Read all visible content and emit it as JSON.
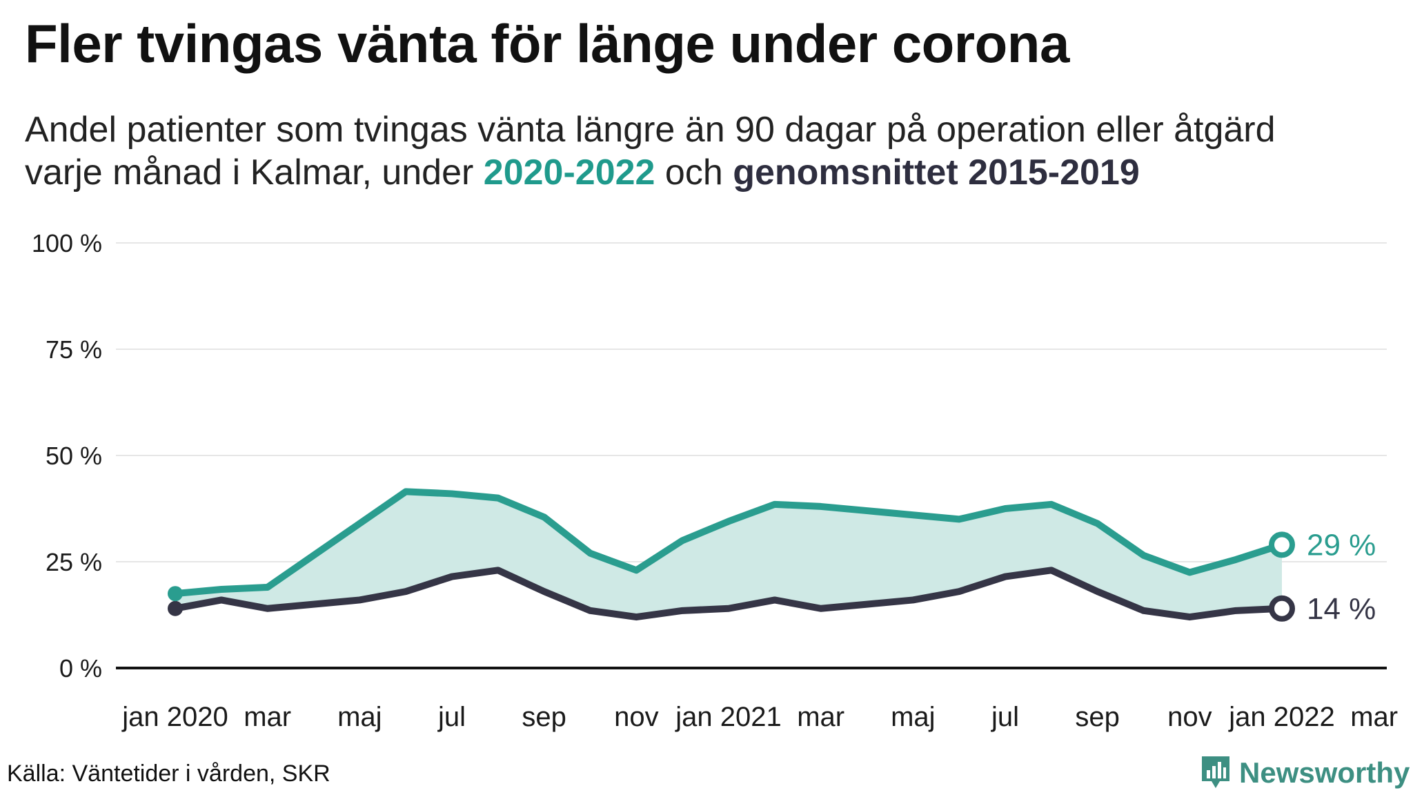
{
  "title": "Fler tvingas vänta för länge under corona",
  "subtitle": {
    "line1": "Andel patienter som tvingas vänta längre än 90 dagar på operation eller åtgärd",
    "line2_prefix": "varje månad i Kalmar, under ",
    "highlight_current": "2020-2022",
    "line2_middle": " och ",
    "highlight_average": "genomsnittet 2015-2019"
  },
  "source": "Källa: Väntetider i vården, SKR",
  "logo": {
    "text": "Newsworthy",
    "icon": "bar-chart-icon"
  },
  "colors": {
    "current": "#2a9d8f",
    "average": "#353546",
    "area": "#cfe9e5",
    "grid": "#e6e6e6",
    "axis": "#111111"
  },
  "chart_data": {
    "type": "line",
    "x": [
      "2020-01",
      "2020-02",
      "2020-03",
      "2020-04",
      "2020-05",
      "2020-06",
      "2020-07",
      "2020-08",
      "2020-09",
      "2020-10",
      "2020-11",
      "2020-12",
      "2021-01",
      "2021-02",
      "2021-03",
      "2021-04",
      "2021-05",
      "2021-06",
      "2021-07",
      "2021-08",
      "2021-09",
      "2021-10",
      "2021-11",
      "2021-12",
      "2022-01"
    ],
    "x_tick_labels": [
      {
        "x": "2020-01",
        "label": "jan 2020"
      },
      {
        "x": "2020-03",
        "label": "mar"
      },
      {
        "x": "2020-05",
        "label": "maj"
      },
      {
        "x": "2020-07",
        "label": "jul"
      },
      {
        "x": "2020-09",
        "label": "sep"
      },
      {
        "x": "2020-11",
        "label": "nov"
      },
      {
        "x": "2021-01",
        "label": "jan 2021"
      },
      {
        "x": "2021-03",
        "label": "mar"
      },
      {
        "x": "2021-05",
        "label": "maj"
      },
      {
        "x": "2021-07",
        "label": "jul"
      },
      {
        "x": "2021-09",
        "label": "sep"
      },
      {
        "x": "2021-11",
        "label": "nov"
      },
      {
        "x": "2022-01",
        "label": "jan 2022"
      },
      {
        "x": "2022-03",
        "label": "mar"
      }
    ],
    "x_range": [
      "2020-01",
      "2022-03"
    ],
    "y_ticks": [
      0,
      25,
      50,
      75,
      100
    ],
    "y_tick_labels": [
      "0 %",
      "25 %",
      "50 %",
      "75 %",
      "100 %"
    ],
    "ylim": [
      0,
      100
    ],
    "grid": true,
    "series": [
      {
        "name": "2020-2022",
        "values": [
          17.5,
          18.5,
          19,
          26.5,
          34,
          41.5,
          41,
          40,
          35.5,
          27,
          23,
          30,
          34.5,
          38.5,
          38,
          37,
          36,
          35,
          37.5,
          38.5,
          34,
          26.5,
          22.5,
          25.5,
          29
        ],
        "end_label": "29 %"
      },
      {
        "name": "genomsnittet 2015-2019",
        "values": [
          14,
          16,
          14,
          15,
          16,
          18,
          21.5,
          23,
          18,
          13.5,
          12,
          13.5,
          14,
          16,
          14,
          15,
          16,
          18,
          21.5,
          23,
          18,
          13.5,
          12,
          13.5,
          14
        ],
        "end_label": "14 %"
      }
    ]
  }
}
